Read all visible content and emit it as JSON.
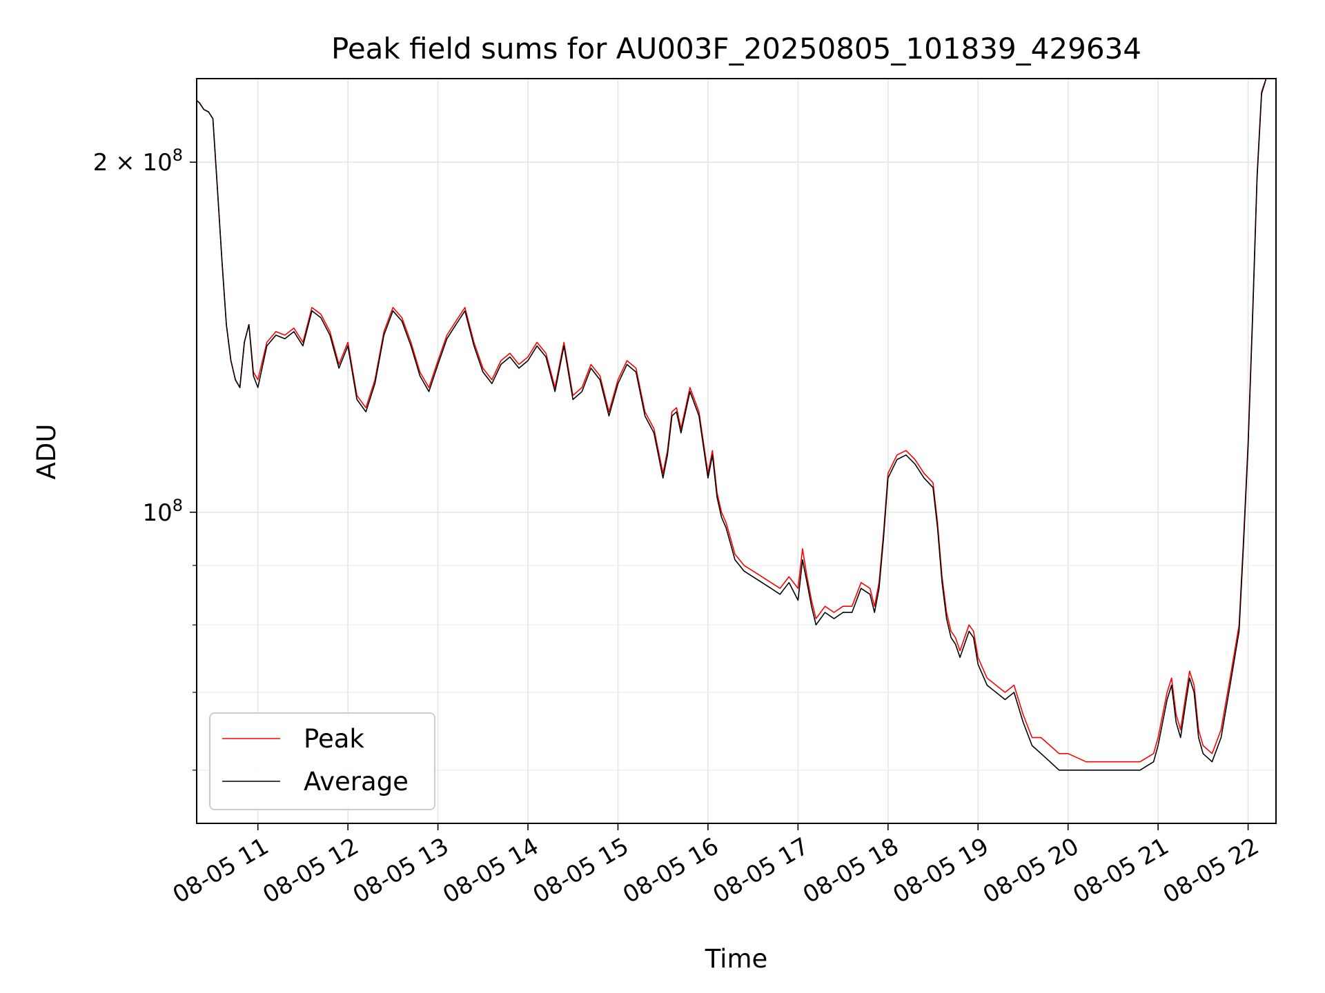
{
  "chart_data": {
    "type": "line",
    "title": "Peak field sums for AU003F_20250805_101839_429634",
    "xlabel": "Time",
    "ylabel": "ADU",
    "y_scale": "log",
    "grid": true,
    "legend_position": "lower-left",
    "x_ticks": [
      "08-05 11",
      "08-05 12",
      "08-05 13",
      "08-05 14",
      "08-05 15",
      "08-05 16",
      "08-05 17",
      "08-05 18",
      "08-05 19",
      "08-05 20",
      "08-05 21",
      "08-05 22"
    ],
    "y_tick_labels": [
      {
        "value": 200000000,
        "base": "2 × 10",
        "exp": "8"
      },
      {
        "value": 100000000,
        "base": "10",
        "exp": "8"
      }
    ],
    "y_minor_ticks": [
      60000000,
      70000000,
      80000000,
      90000000
    ],
    "xlim_hours": [
      10.32,
      22.31
    ],
    "ylim": [
      54000000,
      236000000
    ],
    "series": [
      {
        "name": "Peak",
        "color": "#ff0000",
        "x_hours": [
          10.32,
          10.35,
          10.4,
          10.45,
          10.5,
          10.55,
          10.6,
          10.65,
          10.7,
          10.75,
          10.8,
          10.85,
          10.9,
          10.95,
          11.0,
          11.1,
          11.2,
          11.3,
          11.4,
          11.5,
          11.6,
          11.7,
          11.8,
          11.9,
          12.0,
          12.1,
          12.2,
          12.3,
          12.4,
          12.5,
          12.6,
          12.7,
          12.8,
          12.9,
          13.0,
          13.1,
          13.2,
          13.3,
          13.4,
          13.5,
          13.6,
          13.7,
          13.8,
          13.9,
          14.0,
          14.1,
          14.2,
          14.3,
          14.4,
          14.5,
          14.6,
          14.7,
          14.8,
          14.9,
          15.0,
          15.1,
          15.2,
          15.3,
          15.4,
          15.5,
          15.55,
          15.6,
          15.65,
          15.7,
          15.8,
          15.9,
          16.0,
          16.05,
          16.1,
          16.15,
          16.2,
          16.25,
          16.3,
          16.35,
          16.4,
          16.5,
          16.6,
          16.7,
          16.8,
          16.9,
          17.0,
          17.05,
          17.1,
          17.15,
          17.2,
          17.3,
          17.4,
          17.5,
          17.6,
          17.7,
          17.8,
          17.85,
          17.9,
          17.95,
          18.0,
          18.1,
          18.2,
          18.3,
          18.4,
          18.5,
          18.55,
          18.6,
          18.65,
          18.7,
          18.75,
          18.8,
          18.85,
          18.9,
          18.95,
          19.0,
          19.1,
          19.2,
          19.3,
          19.4,
          19.5,
          19.6,
          19.7,
          19.8,
          19.9,
          20.0,
          20.2,
          20.4,
          20.6,
          20.8,
          20.95,
          21.0,
          21.1,
          21.15,
          21.2,
          21.25,
          21.3,
          21.35,
          21.4,
          21.45,
          21.5,
          21.6,
          21.7,
          21.8,
          21.9,
          21.95,
          22.0,
          22.05,
          22.1,
          22.15,
          22.2,
          22.31
        ],
        "values_millions": [
          226,
          225,
          222,
          221,
          218,
          190,
          165,
          145,
          135,
          130,
          128,
          140,
          145,
          132,
          130,
          140,
          143,
          142,
          144,
          140,
          150,
          148,
          143,
          134,
          140,
          126,
          123,
          130,
          143,
          150,
          147,
          140,
          132,
          128,
          135,
          142,
          146,
          150,
          140,
          133,
          130,
          135,
          137,
          134,
          136,
          140,
          137,
          128,
          140,
          126,
          128,
          134,
          131,
          122,
          130,
          135,
          133,
          122,
          118,
          108,
          113,
          122,
          123,
          118,
          128,
          122,
          108,
          113,
          104,
          100,
          98,
          95,
          92,
          91,
          90,
          89,
          88,
          87,
          86,
          88,
          86,
          93,
          88,
          84,
          81,
          83,
          82,
          83,
          83,
          87,
          86,
          83,
          87,
          96,
          108,
          112,
          113,
          111,
          108,
          106,
          98,
          88,
          82,
          79,
          78,
          76,
          78,
          80,
          79,
          75,
          72,
          71,
          70,
          71,
          67,
          64,
          64,
          63,
          62,
          62,
          61,
          61,
          61,
          61,
          62,
          64,
          70,
          72,
          67,
          65,
          69,
          73,
          71,
          65,
          63,
          62,
          65,
          72,
          80,
          95,
          115,
          148,
          195,
          230,
          236,
          236
        ]
      },
      {
        "name": "Average",
        "color": "#000000",
        "x_hours": [
          10.32,
          10.35,
          10.4,
          10.45,
          10.5,
          10.55,
          10.6,
          10.65,
          10.7,
          10.75,
          10.8,
          10.85,
          10.9,
          10.95,
          11.0,
          11.1,
          11.2,
          11.3,
          11.4,
          11.5,
          11.6,
          11.7,
          11.8,
          11.9,
          12.0,
          12.1,
          12.2,
          12.3,
          12.4,
          12.5,
          12.6,
          12.7,
          12.8,
          12.9,
          13.0,
          13.1,
          13.2,
          13.3,
          13.4,
          13.5,
          13.6,
          13.7,
          13.8,
          13.9,
          14.0,
          14.1,
          14.2,
          14.3,
          14.4,
          14.5,
          14.6,
          14.7,
          14.8,
          14.9,
          15.0,
          15.1,
          15.2,
          15.3,
          15.4,
          15.5,
          15.55,
          15.6,
          15.65,
          15.7,
          15.8,
          15.9,
          16.0,
          16.05,
          16.1,
          16.15,
          16.2,
          16.25,
          16.3,
          16.35,
          16.4,
          16.5,
          16.6,
          16.7,
          16.8,
          16.9,
          17.0,
          17.05,
          17.1,
          17.15,
          17.2,
          17.3,
          17.4,
          17.5,
          17.6,
          17.7,
          17.8,
          17.85,
          17.9,
          17.95,
          18.0,
          18.1,
          18.2,
          18.3,
          18.4,
          18.5,
          18.55,
          18.6,
          18.65,
          18.7,
          18.75,
          18.8,
          18.85,
          18.9,
          18.95,
          19.0,
          19.1,
          19.2,
          19.3,
          19.4,
          19.5,
          19.6,
          19.7,
          19.8,
          19.9,
          20.0,
          20.2,
          20.4,
          20.6,
          20.8,
          20.95,
          21.0,
          21.1,
          21.15,
          21.2,
          21.25,
          21.3,
          21.35,
          21.4,
          21.45,
          21.5,
          21.6,
          21.7,
          21.8,
          21.9,
          21.95,
          22.0,
          22.05,
          22.1,
          22.15,
          22.2,
          22.31
        ],
        "values_millions": [
          226,
          225,
          222,
          221,
          218,
          190,
          165,
          145,
          135,
          130,
          128,
          140,
          145,
          131,
          128,
          139,
          142,
          141,
          143,
          139,
          149,
          147,
          142,
          133,
          139,
          125,
          122,
          129,
          142,
          149,
          146,
          139,
          131,
          127,
          134,
          141,
          145,
          149,
          139,
          132,
          129,
          134,
          136,
          133,
          135,
          139,
          136,
          127,
          139,
          125,
          127,
          133,
          130,
          121,
          129,
          134,
          132,
          121,
          117,
          107,
          112,
          121,
          122,
          117,
          127,
          121,
          107,
          112,
          103,
          99,
          97,
          94,
          91,
          90,
          89,
          88,
          87,
          86,
          85,
          87,
          84,
          91,
          87,
          83,
          80,
          82,
          81,
          82,
          82,
          86,
          85,
          82,
          86,
          95,
          107,
          111,
          112,
          110,
          107,
          105,
          97,
          87,
          81,
          78,
          77,
          75,
          77,
          79,
          78,
          74,
          71,
          70,
          69,
          70,
          66,
          63,
          62,
          61,
          60,
          60,
          60,
          60,
          60,
          60,
          61,
          63,
          69,
          71,
          66,
          64,
          68,
          72,
          70,
          64,
          62,
          61,
          64,
          71,
          79,
          94,
          114,
          147,
          194,
          229,
          236,
          236
        ]
      }
    ]
  }
}
